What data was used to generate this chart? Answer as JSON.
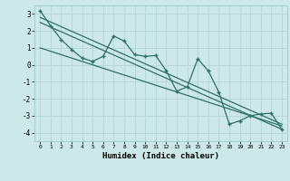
{
  "xlabel": "Humidex (Indice chaleur)",
  "background_color": "#cce8e8",
  "grid_color": "#b8d8d8",
  "line_color": "#2d7067",
  "xlim": [
    -0.5,
    23.5
  ],
  "ylim": [
    -4.5,
    3.5
  ],
  "xticks": [
    0,
    1,
    2,
    3,
    4,
    5,
    6,
    7,
    8,
    9,
    10,
    11,
    12,
    13,
    14,
    15,
    16,
    17,
    18,
    19,
    20,
    21,
    22,
    23
  ],
  "yticks": [
    -4,
    -3,
    -2,
    -1,
    0,
    1,
    2,
    3
  ],
  "main_x": [
    0,
    1,
    2,
    3,
    4,
    5,
    6,
    7,
    8,
    9,
    10,
    11,
    12,
    13,
    14,
    15,
    16,
    17,
    18,
    19,
    20,
    21,
    22,
    23
  ],
  "main_y": [
    3.2,
    2.3,
    1.5,
    0.9,
    0.4,
    0.2,
    0.5,
    1.7,
    1.4,
    0.6,
    0.5,
    0.55,
    -0.35,
    -1.55,
    -1.3,
    0.35,
    -0.35,
    -1.6,
    -3.5,
    -3.3,
    -3.0,
    -2.9,
    -2.85,
    -3.8
  ],
  "trend1_x": [
    0,
    23
  ],
  "trend1_y": [
    2.8,
    -3.5
  ],
  "trend2_x": [
    0,
    23
  ],
  "trend2_y": [
    2.5,
    -3.8
  ],
  "trend3_x": [
    0,
    23
  ],
  "trend3_y": [
    1.0,
    -3.6
  ]
}
